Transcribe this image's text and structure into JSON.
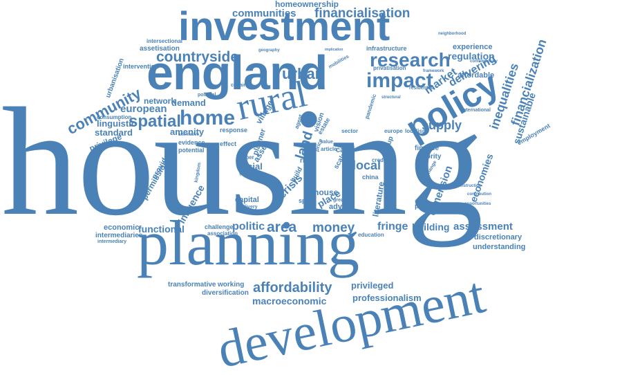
{
  "colors": {
    "word": "#4a82b8",
    "background": "#ffffff"
  },
  "words": [
    "housing",
    "planning",
    "development",
    "england",
    "investment",
    "rural",
    "policy",
    "home",
    "impact",
    "research",
    "urban",
    "countryside",
    "financialisation",
    "communities",
    "homeownership",
    "community",
    "european",
    "spatial",
    "linguistic",
    "standard",
    "privilege",
    "network",
    "demand",
    "affordability",
    "macroeconomic",
    "professionalism",
    "privileged",
    "assessment",
    "building",
    "fringe",
    "money",
    "area",
    "politic",
    "functional",
    "economic",
    "intermediaries",
    "transformative",
    "working",
    "diversification",
    "market",
    "delivering",
    "regulation",
    "experience",
    "infrastructure",
    "inequalities",
    "financialization",
    "sustainable",
    "supply",
    "local",
    "crisis",
    "land",
    "place",
    "house",
    "social",
    "capital",
    "literature",
    "dimension",
    "economies",
    "influence",
    "permission",
    "provider",
    "amenity",
    "understanding",
    "discretionary",
    "assetisation",
    "urbanisation",
    "intervention",
    "intersectional",
    "employment",
    "principle",
    "affordable",
    "finance",
    "advice",
    "village",
    "planner",
    "evidence",
    "potential",
    "challenge",
    "association",
    "response",
    "effect",
    "asset",
    "case",
    "risk",
    "scale",
    "build",
    "space",
    "china",
    "education",
    "europe",
    "localism",
    "priority",
    "framework",
    "contemporary",
    "neighborhood",
    "geography",
    "privatisation",
    "residential",
    "international",
    "certainty",
    "consumption",
    "intermediary",
    "political",
    "kingdom",
    "guide",
    "paper",
    "price",
    "article",
    "value",
    "greater",
    "group",
    "vision",
    "estate",
    "agent",
    "pandemic",
    "structural",
    "sector",
    "construction",
    "contribution",
    "opportunities",
    "mobilities",
    "implication",
    "alternative",
    "delivery",
    "credit",
    "change"
  ]
}
